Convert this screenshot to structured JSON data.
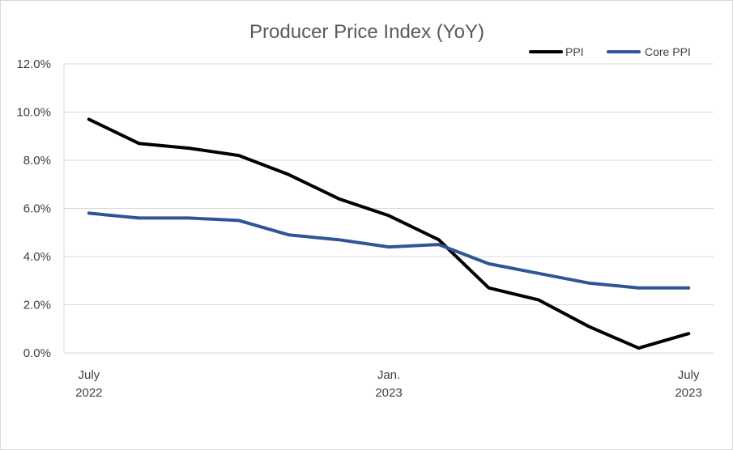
{
  "chart_data": {
    "type": "line",
    "title": "Producer Price Index (YoY)",
    "x": [
      "2022-07",
      "2022-08",
      "2022-09",
      "2022-10",
      "2022-11",
      "2022-12",
      "2023-01",
      "2023-02",
      "2023-03",
      "2023-04",
      "2023-05",
      "2023-06",
      "2023-07"
    ],
    "x_tick_labels": [
      {
        "index": 0,
        "line1": "July",
        "line2": "2022"
      },
      {
        "index": 6,
        "line1": "Jan.",
        "line2": "2023"
      },
      {
        "index": 12,
        "line1": "July",
        "line2": "2023"
      }
    ],
    "series": [
      {
        "name": "PPI",
        "color": "#000000",
        "values": [
          9.7,
          8.7,
          8.5,
          8.2,
          7.4,
          6.4,
          5.7,
          4.7,
          2.7,
          2.2,
          1.1,
          0.2,
          0.8
        ]
      },
      {
        "name": "Core PPI",
        "color": "#2f5597",
        "values": [
          5.8,
          5.6,
          5.6,
          5.5,
          4.9,
          4.7,
          4.4,
          4.5,
          3.7,
          3.3,
          2.9,
          2.7,
          2.7
        ]
      }
    ],
    "ylim": [
      0,
      12
    ],
    "y_ticks": [
      "0.0%",
      "2.0%",
      "4.0%",
      "6.0%",
      "8.0%",
      "10.0%",
      "12.0%"
    ],
    "grid": true,
    "legend_position": "top-right"
  }
}
